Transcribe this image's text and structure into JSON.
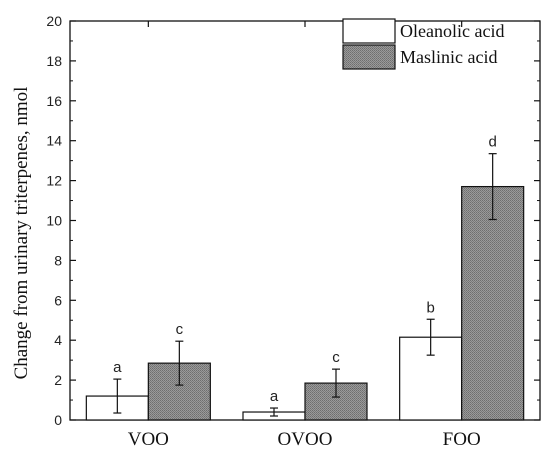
{
  "chart_data": {
    "type": "bar",
    "ylabel": "Change from urinary triterpenes, nmol",
    "xlabel": "",
    "ylim": [
      0,
      20
    ],
    "yticks": [
      0,
      2,
      4,
      6,
      8,
      10,
      12,
      14,
      16,
      18,
      20
    ],
    "categories": [
      "VOO",
      "OVOO",
      "FOO"
    ],
    "legend_position": "top-right",
    "series": [
      {
        "name": "Oleanolic acid",
        "color": "#ffffff",
        "values": [
          1.2,
          0.4,
          4.15
        ],
        "errors": [
          0.85,
          0.2,
          0.9
        ],
        "letters": [
          "a",
          "a",
          "b"
        ]
      },
      {
        "name": "Maslinic acid",
        "color": "#8c8c8c",
        "values": [
          2.85,
          1.85,
          11.7
        ],
        "errors": [
          1.1,
          0.7,
          1.65
        ],
        "letters": [
          "c",
          "c",
          "d"
        ]
      }
    ]
  }
}
